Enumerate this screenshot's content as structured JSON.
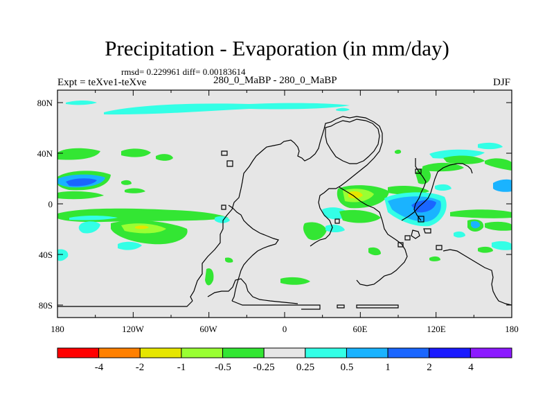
{
  "title": "Precipitation - Evaporation (in mm/day)",
  "stats_line": "rmsd= 0.229961 diff= 0.00183614",
  "experiment_label": "Expt = teXve1-teXve",
  "case_label": "280_0_MaBP - 280_0_MaBP",
  "season_label": "DJF",
  "map": {
    "background_color": "#e6e6e6",
    "y_axis_labels": [
      "80N",
      "40N",
      "0",
      "40S",
      "80S"
    ],
    "x_axis_labels": [
      "180",
      "120W",
      "60W",
      "0",
      "60E",
      "120E",
      "180"
    ]
  },
  "colorbar": {
    "colors": [
      "#ff0000",
      "#ff8000",
      "#e6e600",
      "#99ff33",
      "#33e633",
      "#e6e6e6",
      "#33ffe6",
      "#1ab3ff",
      "#1a66ff",
      "#1a1aff",
      "#8c1aff"
    ],
    "labels": [
      "-4",
      "-2",
      "-1",
      "-0.5",
      "-0.25",
      "0.25",
      "0.5",
      "1",
      "2",
      "4"
    ]
  }
}
